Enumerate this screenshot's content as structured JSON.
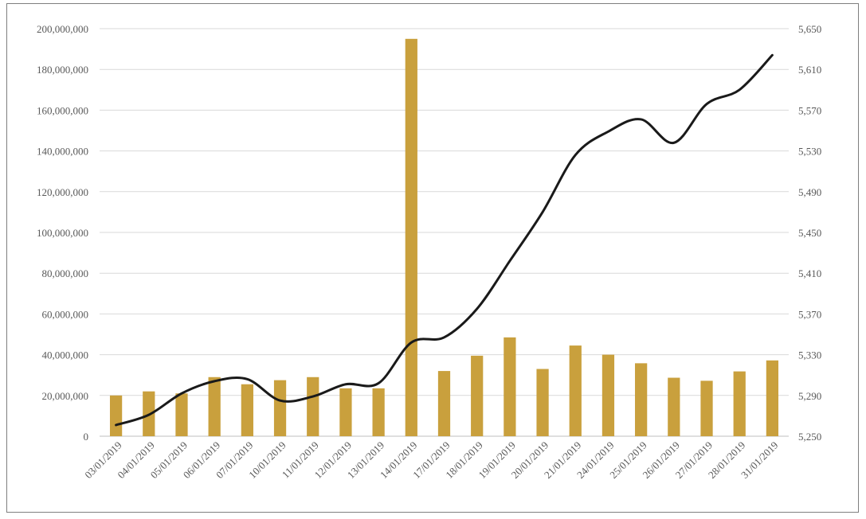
{
  "chart_data": {
    "type": "bar",
    "categories": [
      "03/01/2019",
      "04/01/2019",
      "05/01/2019",
      "06/01/2019",
      "07/01/2019",
      "10/01/2019",
      "11/01/2019",
      "12/01/2019",
      "13/01/2019",
      "14/01/2019",
      "17/01/2019",
      "18/01/2019",
      "19/01/2019",
      "20/01/2019",
      "21/01/2019",
      "24/01/2019",
      "25/01/2019",
      "26/01/2019",
      "27/01/2019",
      "28/01/2019",
      "31/01/2019"
    ],
    "series": [
      {
        "type": "bar",
        "axis": "left",
        "color": "#c9a03d",
        "values": [
          20000000,
          22000000,
          21000000,
          29000000,
          25500000,
          27500000,
          29000000,
          23500000,
          23500000,
          195000000,
          32000000,
          39500000,
          48500000,
          33000000,
          44500000,
          40000000,
          35800000,
          28700000,
          27200000,
          31800000,
          37200000
        ]
      },
      {
        "type": "line",
        "axis": "right",
        "color": "#1a1a1a",
        "values": [
          5261,
          5271,
          5292,
          5304,
          5306,
          5285,
          5289,
          5301,
          5302,
          5342,
          5347,
          5375,
          5422,
          5470,
          5526,
          5549,
          5561,
          5538,
          5576,
          5590,
          5624
        ]
      }
    ],
    "y_left": {
      "min": 0,
      "max": 200000000,
      "step": 20000000,
      "tick_labels": [
        "0",
        "20,000,000",
        "40,000,000",
        "60,000,000",
        "80,000,000",
        "100,000,000",
        "120,000,000",
        "140,000,000",
        "160,000,000",
        "180,000,000",
        "200,000,000"
      ]
    },
    "y_right": {
      "min": 5250,
      "max": 5650,
      "step": 40,
      "tick_labels": [
        "5,250",
        "5,290",
        "5,330",
        "5,370",
        "5,410",
        "5,450",
        "5,490",
        "5,530",
        "5,570",
        "5,610",
        "5,650"
      ]
    },
    "grid": true,
    "legend": "none",
    "title": "",
    "xlabel": "",
    "ylabel": ""
  }
}
